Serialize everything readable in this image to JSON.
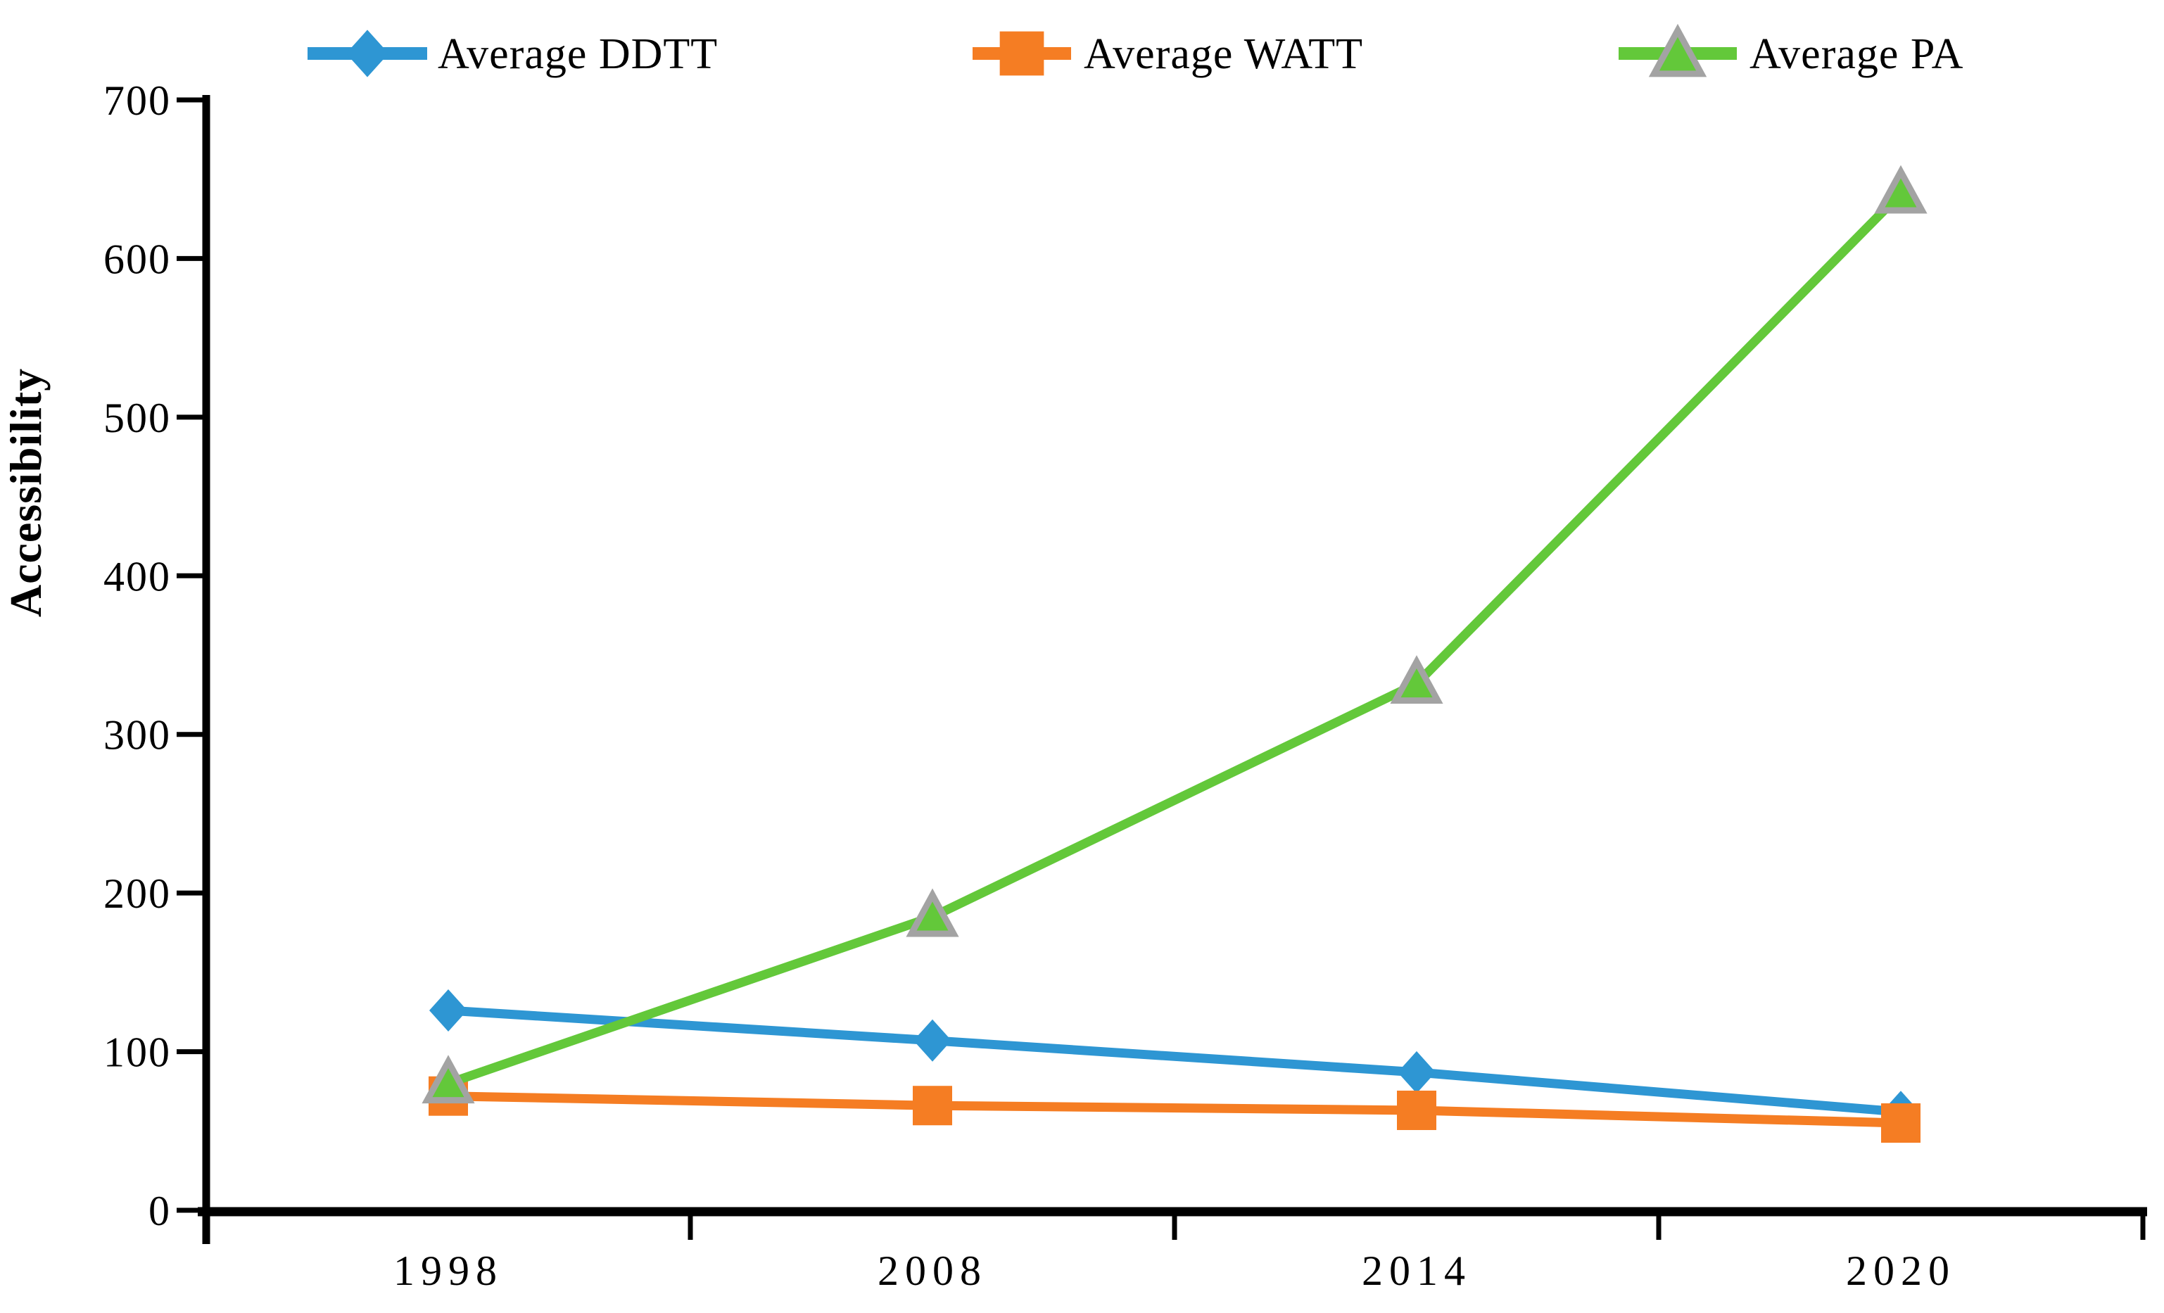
{
  "chart_data": {
    "type": "line",
    "title": "",
    "xlabel": "",
    "ylabel": "Accessibility",
    "categories": [
      "1998",
      "2008",
      "2014",
      "2020"
    ],
    "series": [
      {
        "name": "Average DDTT",
        "color": "#2E96D3",
        "marker": "diamond",
        "marker_border": "#2E96D3",
        "values": [
          126,
          107,
          87,
          62
        ]
      },
      {
        "name": "Average WATT",
        "color": "#F57D23",
        "marker": "square",
        "marker_border": "#F57D23",
        "values": [
          72,
          66,
          63,
          55
        ]
      },
      {
        "name": "Average PA",
        "color": "#63C83A",
        "marker": "triangle",
        "marker_border": "#A3A3A3",
        "values": [
          80,
          185,
          332,
          641
        ]
      }
    ],
    "y_axis": {
      "min": 0,
      "max": 700,
      "step": 100,
      "ticks": [
        0,
        100,
        200,
        300,
        400,
        500,
        600,
        700
      ]
    },
    "x_axis": {
      "tick_style": "between-categories"
    },
    "legend_position": "top",
    "grid": false,
    "axis_color": "#000000",
    "background": "#FFFFFF"
  }
}
